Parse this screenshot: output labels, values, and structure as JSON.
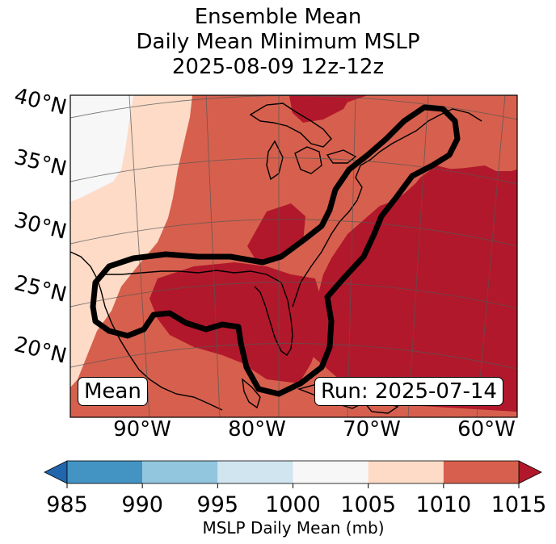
{
  "title_lines": [
    "Ensemble Mean",
    "Daily Mean Minimum MSLP",
    "2025-08-09 12z-12z"
  ],
  "lat_labels": [
    "40°N",
    "35°N",
    "30°N",
    "25°N",
    "20°N"
  ],
  "lon_labels": [
    "90°W",
    "80°W",
    "70°W",
    "60°W"
  ],
  "mean_label": "Mean",
  "run_label": "Run: 2025-07-14",
  "colorbar": {
    "label": "MSLP Daily Mean (mb)",
    "ticks": [
      "985",
      "990",
      "995",
      "1000",
      "1005",
      "1010",
      "1015"
    ],
    "bins": [
      {
        "lo": 985,
        "hi": 990,
        "color": "#4393c3"
      },
      {
        "lo": 990,
        "hi": 995,
        "color": "#92c5de"
      },
      {
        "lo": 995,
        "hi": 1000,
        "color": "#d1e5f0"
      },
      {
        "lo": 1000,
        "hi": 1005,
        "color": "#f7f7f7"
      },
      {
        "lo": 1005,
        "hi": 1010,
        "color": "#fddbc7"
      },
      {
        "lo": 1010,
        "hi": 1015,
        "color": "#d6604d"
      }
    ],
    "under_color": "#2166ac",
    "over_color": "#b2182b"
  }
}
